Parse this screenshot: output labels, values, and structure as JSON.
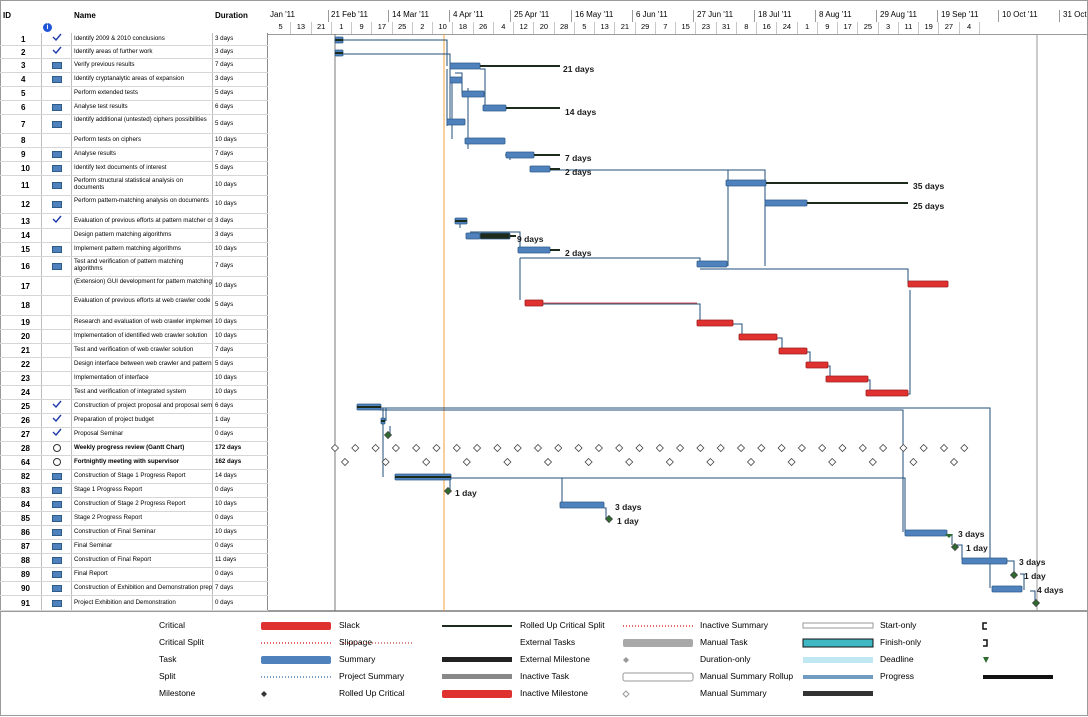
{
  "columns": {
    "id": "ID",
    "name": "Name",
    "duration": "Duration",
    "info_icon": "info-icon"
  },
  "timeline": {
    "major": [
      "Jan '11",
      "21 Feb '11",
      "14 Mar '11",
      "4 Apr '11",
      "25 Apr '11",
      "16 May '11",
      "6 Jun '11",
      "27 Jun '11",
      "18 Jul '11",
      "8 Aug '11",
      "29 Aug '11",
      "19 Sep '11",
      "10 Oct '11",
      "31 Oct '11"
    ],
    "minor": [
      "5",
      "13",
      "21",
      "1",
      "9",
      "17",
      "25",
      "2",
      "10",
      "18",
      "26",
      "4",
      "12",
      "20",
      "28",
      "5",
      "13",
      "21",
      "29",
      "7",
      "15",
      "23",
      "31",
      "8",
      "16",
      "24",
      "1",
      "9",
      "17",
      "25",
      "3",
      "11",
      "19",
      "27",
      "4"
    ]
  },
  "tasks": [
    {
      "id": "1",
      "ind": "check",
      "name": "Identify 2009 & 2010 conclusions",
      "duration": "3 days"
    },
    {
      "id": "2",
      "ind": "check",
      "name": "Identify areas of further work",
      "duration": "3 days"
    },
    {
      "id": "3",
      "ind": "table",
      "name": "Verify previous results",
      "duration": "7 days"
    },
    {
      "id": "4",
      "ind": "table",
      "name": "Identify cryptanalytic areas of expansion",
      "duration": "3 days"
    },
    {
      "id": "5",
      "ind": "",
      "name": "Perform extended tests",
      "duration": "5 days"
    },
    {
      "id": "6",
      "ind": "table",
      "name": "Analyse test results",
      "duration": "6 days"
    },
    {
      "id": "7",
      "ind": "table",
      "name": "Identify additional (untested) ciphers possibilities",
      "duration": "5 days"
    },
    {
      "id": "8",
      "ind": "",
      "name": "Perform tests on ciphers",
      "duration": "10 days"
    },
    {
      "id": "9",
      "ind": "table",
      "name": "Analyse results",
      "duration": "7 days"
    },
    {
      "id": "10",
      "ind": "table",
      "name": "Identify text documents of interest",
      "duration": "5 days"
    },
    {
      "id": "11",
      "ind": "table",
      "name": "Perform structural statistical analysis on documents",
      "duration": "10 days"
    },
    {
      "id": "12",
      "ind": "table",
      "name": "Perform pattern-matching analysis on documents",
      "duration": "10 days"
    },
    {
      "id": "13",
      "ind": "check",
      "name": "Evaluation of previous efforts at pattern matcher cr",
      "duration": "3 days"
    },
    {
      "id": "14",
      "ind": "",
      "name": "Design pattern matching algorithms",
      "duration": "3 days"
    },
    {
      "id": "15",
      "ind": "table",
      "name": "Implement pattern matching algorithms",
      "duration": "10 days"
    },
    {
      "id": "16",
      "ind": "table",
      "name": "Test and verification of pattern matching algorithms",
      "duration": "7 days"
    },
    {
      "id": "17",
      "ind": "",
      "name": "(Extension) GUI development for pattern matching",
      "duration": "10 days"
    },
    {
      "id": "18",
      "ind": "",
      "name": "Evaluation of previous efforts at web crawler code",
      "duration": "5 days"
    },
    {
      "id": "19",
      "ind": "",
      "name": "Research and evaluation of web crawler implemen",
      "duration": "10 days"
    },
    {
      "id": "20",
      "ind": "",
      "name": "Implementation of identified web crawler solution",
      "duration": "10 days"
    },
    {
      "id": "21",
      "ind": "",
      "name": "Test and verification of web crawler solution",
      "duration": "7 days"
    },
    {
      "id": "22",
      "ind": "",
      "name": "Design interface between web crawler and pattern",
      "duration": "5 days"
    },
    {
      "id": "23",
      "ind": "",
      "name": "Implementation of interface",
      "duration": "10 days"
    },
    {
      "id": "24",
      "ind": "",
      "name": "Test and verification of integrated system",
      "duration": "10 days"
    },
    {
      "id": "25",
      "ind": "check",
      "name": "Construction of project proposal and proposal sem",
      "duration": "6 days"
    },
    {
      "id": "26",
      "ind": "check",
      "name": "Preparation of project budget",
      "duration": "1 day"
    },
    {
      "id": "27",
      "ind": "check",
      "name": "Proposal Seminar",
      "duration": "0 days"
    },
    {
      "id": "28",
      "ind": "recur",
      "name": "Weekly progress review (Gantt Chart)",
      "duration": "172 days"
    },
    {
      "id": "64",
      "ind": "recur",
      "name": "Fortnightly meeting with supervisor",
      "duration": "162 days"
    },
    {
      "id": "82",
      "ind": "table",
      "name": "Construction of Stage 1 Progress Report",
      "duration": "14 days"
    },
    {
      "id": "83",
      "ind": "table",
      "name": "Stage 1 Progress Report",
      "duration": "0 days"
    },
    {
      "id": "84",
      "ind": "table",
      "name": "Construction of Stage 2 Progress Report",
      "duration": "10 days"
    },
    {
      "id": "85",
      "ind": "table",
      "name": "Stage 2 Progress Report",
      "duration": "0 days"
    },
    {
      "id": "86",
      "ind": "table",
      "name": "Construction of Final Seminar",
      "duration": "10 days"
    },
    {
      "id": "87",
      "ind": "table",
      "name": "Final Seminar",
      "duration": "0 days"
    },
    {
      "id": "88",
      "ind": "table",
      "name": "Construction of Final Report",
      "duration": "11 days"
    },
    {
      "id": "89",
      "ind": "table",
      "name": "Final Report",
      "duration": "0 days"
    },
    {
      "id": "90",
      "ind": "table",
      "name": "Construction of Exhibition and Demonstration prep",
      "duration": "7 days"
    },
    {
      "id": "91",
      "ind": "table",
      "name": "Project Exhibition and Demonstration",
      "duration": "0 days"
    }
  ],
  "bar_labels": [
    "21 days",
    "14 days",
    "7 days",
    "2 days",
    "35 days",
    "25 days",
    "9 days",
    "2 days",
    "1 day",
    "3 days",
    "1 day",
    "3 days",
    "1 day",
    "3 days",
    "1 day",
    "4 days"
  ],
  "legend": {
    "col1": [
      "Critical",
      "Critical Split",
      "Task",
      "Split",
      "Milestone"
    ],
    "col2": [
      "Slack",
      "Slippage",
      "Summary",
      "Project Summary",
      "Rolled Up Critical"
    ],
    "col3": [
      "Rolled Up Critical Split",
      "External Tasks",
      "External Milestone",
      "Inactive Task",
      "Inactive Milestone"
    ],
    "col4": [
      "Inactive Summary",
      "Manual Task",
      "Duration-only",
      "Manual Summary Rollup",
      "Manual Summary"
    ],
    "col5": [
      "Start-only",
      "Finish-only",
      "Deadline",
      "Progress"
    ]
  },
  "colors": {
    "task": "#4f81bd",
    "critical": "#e03131",
    "link": "#1f4e79",
    "progress": "#1c2b1c",
    "today": "#f0a040"
  }
}
